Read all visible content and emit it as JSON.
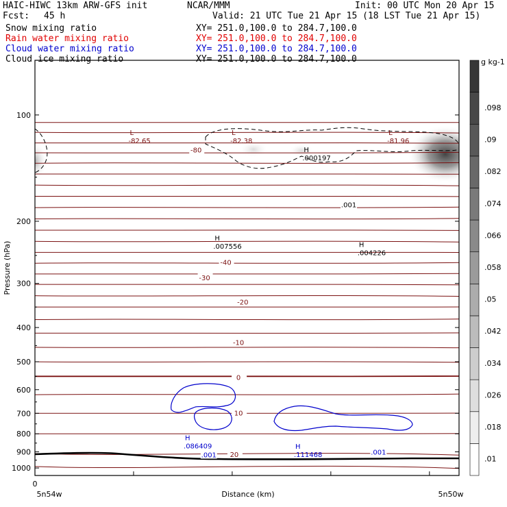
{
  "header": {
    "model": "HAIC-HIWC 13km ARW-GFS init",
    "org": "NCAR/MMM",
    "init": "Init: 00 UTC Mon 20 Apr 15",
    "fcst_label": "Fcst:",
    "fcst_value": "45 h",
    "valid": "Valid: 21 UTC Tue 21 Apr 15 (18 LST Tue 21 Apr 15)"
  },
  "fields": [
    {
      "name": "Snow mixing ratio",
      "xy": "XY= 251.0,100.0 to 284.7,100.0",
      "color": "#000000"
    },
    {
      "name": "Rain water mixing ratio",
      "xy": "XY= 251.0,100.0 to 284.7,100.0",
      "color": "#e00000"
    },
    {
      "name": "Cloud water mixing ratio",
      "xy": "XY= 251.0,100.0 to 284.7,100.0",
      "color": "#0000cc"
    },
    {
      "name": "Cloud ice mixing ratio",
      "xy": "XY= 251.0,100.0 to 284.7,100.0",
      "color": "#000000"
    }
  ],
  "chart_data": {
    "type": "heatmap",
    "ylabel": "Pressure (hPa)",
    "xlabel": "Distance (km)",
    "y_scale": "log",
    "ylim": [
      1050,
      70
    ],
    "yticks": [
      100,
      200,
      300,
      400,
      500,
      600,
      700,
      800,
      900,
      1000
    ],
    "x_start_label": "0",
    "x_left_label": "5n54w",
    "x_right_label": "5n50w",
    "colorbar": {
      "units": "g kg-1",
      "ticks": [
        ".01",
        ".018",
        ".026",
        ".034",
        ".042",
        ".05",
        ".058",
        ".066",
        ".074",
        ".082",
        ".09",
        ".098"
      ],
      "values": [
        0.01,
        0.018,
        0.026,
        0.034,
        0.042,
        0.05,
        0.058,
        0.066,
        0.074,
        0.082,
        0.09,
        0.098
      ]
    },
    "temperature_labels": [
      "-82.65",
      "-80",
      "-82.38",
      "-81.96",
      "-40",
      "-30",
      "-20",
      "-10",
      "0",
      "10",
      "20"
    ],
    "extrema": [
      {
        "type": "L",
        "value": "-82.65",
        "x": 0.24,
        "p": 118
      },
      {
        "type": "L",
        "value": "-82.38",
        "x": 0.48,
        "p": 118
      },
      {
        "type": "L",
        "value": "-81.96",
        "x": 0.85,
        "p": 118
      },
      {
        "type": "H",
        "value": ".000197",
        "x": 0.65,
        "p": 132
      },
      {
        "type": "H",
        "value": ".007556",
        "x": 0.44,
        "p": 235
      },
      {
        "type": "H",
        "value": ".004226",
        "x": 0.78,
        "p": 245
      },
      {
        "type": "H",
        "value": ".086409",
        "x": 0.37,
        "p": 865
      },
      {
        "type": "H",
        "value": ".111468",
        "x": 0.63,
        "p": 915
      }
    ],
    "contour_labels": [
      ".001",
      ".001",
      ".001"
    ]
  }
}
